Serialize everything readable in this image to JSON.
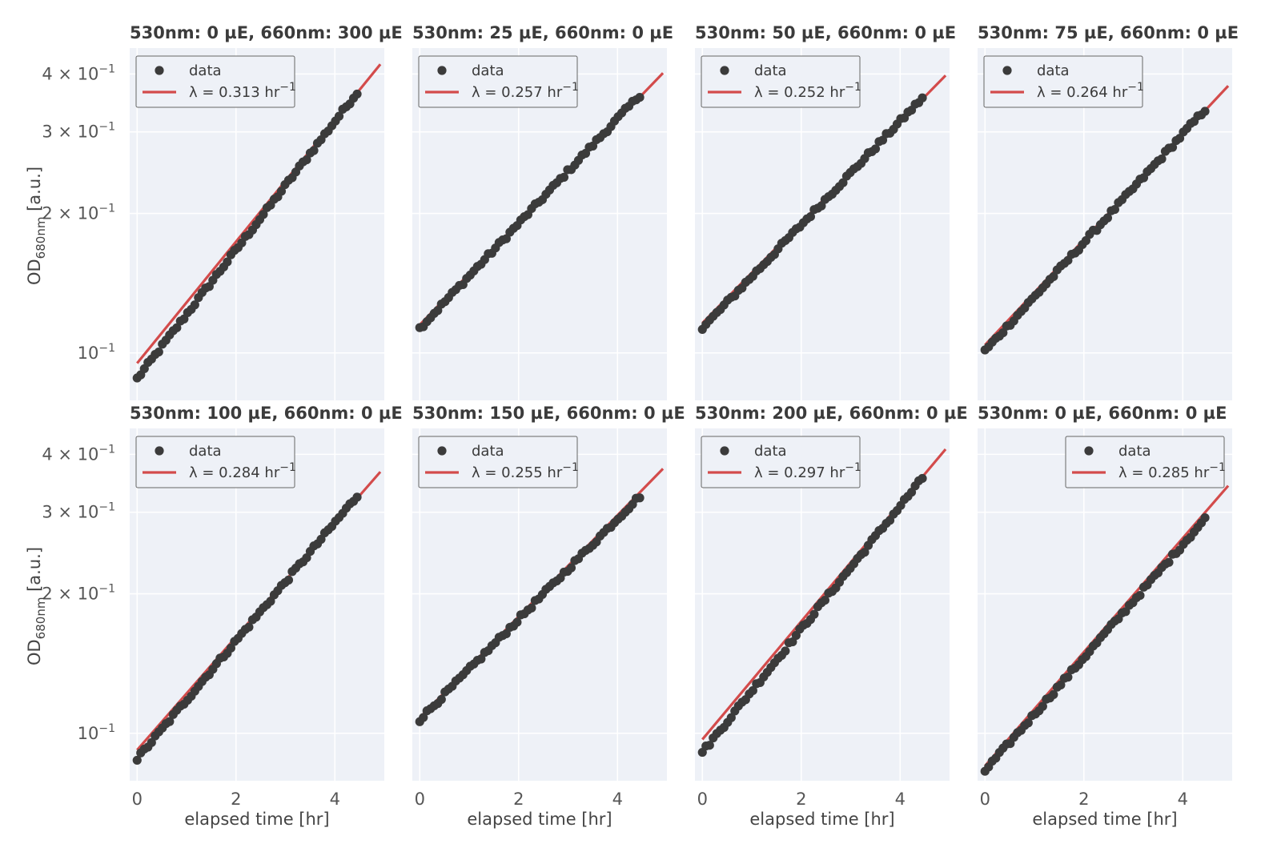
{
  "chart_data": [
    {
      "type": "scatter",
      "title": "530nm: 0 µE, 660nm: 300 µE",
      "rate": 0.313,
      "od0": 0.088,
      "odEnd": 0.365,
      "fitAt0": 0.095,
      "fitAt5": 0.43,
      "legend": {
        "data": "data",
        "fit_prefix": "λ = ",
        "fit_value": "0.313",
        "fit_unit": " hr",
        "fit_exp": "−1",
        "position": "upper left"
      }
    },
    {
      "type": "scatter",
      "title": "530nm: 25 µE, 660nm: 0 µE",
      "rate": 0.257,
      "od0": 0.113,
      "odEnd": 0.36,
      "fitAt0": 0.115,
      "fitAt5": 0.41,
      "legend": {
        "data": "data",
        "fit_prefix": "λ = ",
        "fit_value": "0.257",
        "fit_unit": " hr",
        "fit_exp": "−1",
        "position": "upper left"
      }
    },
    {
      "type": "scatter",
      "title": "530nm: 50 µE, 660nm: 0 µE",
      "rate": 0.252,
      "od0": 0.113,
      "odEnd": 0.355,
      "fitAt0": 0.116,
      "fitAt5": 0.405,
      "legend": {
        "data": "data",
        "fit_prefix": "λ = ",
        "fit_value": "0.252",
        "fit_unit": " hr",
        "fit_exp": "−1",
        "position": "upper left"
      }
    },
    {
      "type": "scatter",
      "title": "530nm: 75 µE, 660nm: 0 µE",
      "rate": 0.264,
      "od0": 0.101,
      "odEnd": 0.335,
      "fitAt0": 0.104,
      "fitAt5": 0.385,
      "legend": {
        "data": "data",
        "fit_prefix": "λ = ",
        "fit_value": "0.264",
        "fit_unit": " hr",
        "fit_exp": "−1",
        "position": "upper left"
      }
    },
    {
      "type": "scatter",
      "title": "530nm: 100 µE, 660nm: 0 µE",
      "rate": 0.284,
      "od0": 0.088,
      "odEnd": 0.325,
      "fitAt0": 0.092,
      "fitAt5": 0.375,
      "legend": {
        "data": "data",
        "fit_prefix": "λ = ",
        "fit_value": "0.284",
        "fit_unit": " hr",
        "fit_exp": "−1",
        "position": "upper left"
      }
    },
    {
      "type": "scatter",
      "title": "530nm: 150 µE, 660nm: 0 µE",
      "rate": 0.255,
      "od0": 0.107,
      "odEnd": 0.325,
      "fitAt0": 0.108,
      "fitAt5": 0.38,
      "legend": {
        "data": "data",
        "fit_prefix": "λ = ",
        "fit_value": "0.255",
        "fit_unit": " hr",
        "fit_exp": "−1",
        "position": "upper left"
      }
    },
    {
      "type": "scatter",
      "title": "530nm: 200 µE, 660nm: 0 µE",
      "rate": 0.297,
      "od0": 0.091,
      "odEnd": 0.355,
      "fitAt0": 0.097,
      "fitAt5": 0.42,
      "legend": {
        "data": "data",
        "fit_prefix": "λ = ",
        "fit_value": "0.297",
        "fit_unit": " hr",
        "fit_exp": "−1",
        "position": "upper left"
      }
    },
    {
      "type": "scatter",
      "title": "530nm: 0 µE, 660nm: 0 µE",
      "rate": 0.285,
      "od0": 0.083,
      "odEnd": 0.29,
      "fitAt0": 0.085,
      "fitAt5": 0.35,
      "legend": {
        "data": "data",
        "fit_prefix": "λ = ",
        "fit_value": "0.285",
        "fit_unit": " hr",
        "fit_exp": "−1",
        "position": "upper right"
      }
    }
  ],
  "axes": {
    "xlabel": "elapsed time [hr]",
    "ylabel_main": "OD",
    "ylabel_sub": "680nm",
    "ylabel_tail": " [a.u.]",
    "x_ticks": [
      "0",
      "2",
      "4"
    ],
    "x_tick_values": [
      0,
      2,
      4
    ],
    "xlim": [
      -0.15,
      5.0
    ],
    "ylim": [
      0.079,
      0.455
    ],
    "y_scale": "log",
    "y_ticks": [
      {
        "value": 0.1,
        "mantissa": "",
        "base": "10",
        "exp": "−1"
      },
      {
        "value": 0.2,
        "mantissa": "2 × ",
        "base": "10",
        "exp": "−1"
      },
      {
        "value": 0.3,
        "mantissa": "3 × ",
        "base": "10",
        "exp": "−1"
      },
      {
        "value": 0.4,
        "mantissa": "4 × ",
        "base": "10",
        "exp": "−1"
      }
    ],
    "grid": true
  },
  "colors": {
    "panel_bg": "#eef1f7",
    "grid": "#ffffff",
    "data": "#3b3b3b",
    "fit": "#d34b4b",
    "legend_border": "#666666"
  }
}
